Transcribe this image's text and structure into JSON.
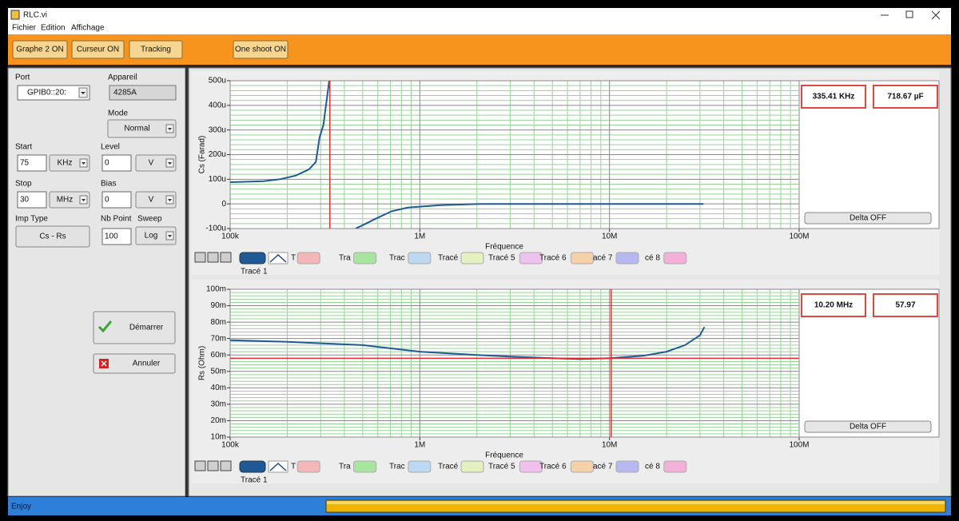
{
  "window": {
    "title": "RLC.vi"
  },
  "menu": [
    "Fichier",
    "Edition",
    "Affichage"
  ],
  "toolbar": [
    "Graphe 2 ON",
    "Curseur ON",
    "Tracking",
    "One shoot ON"
  ],
  "controls": [
    {
      "label": "Port",
      "value": "GPIB0::20:"
    },
    {
      "label": "Appareil",
      "value": "4285A"
    },
    {
      "label": "Mode",
      "value": "Normal"
    },
    {
      "label": "Start",
      "value": "75",
      "unit": "KHz"
    },
    {
      "label": "Level",
      "value": "0",
      "unit": "V"
    },
    {
      "label": "Stop",
      "value": "30",
      "unit": "MHz"
    },
    {
      "label": "Bias",
      "value": "0",
      "unit": "V"
    },
    {
      "label": "Imp Type",
      "value": "Cs - Rs"
    },
    {
      "label": "Nb Point",
      "value": "100"
    },
    {
      "label": "Sweep",
      "value": "Log"
    }
  ],
  "buttons": [
    "Démarrer",
    "Annuler"
  ],
  "graphs": [
    {
      "type": "line",
      "y_label": "Cs (Farad)",
      "x_label": "Fréquence",
      "log_x": true,
      "xlim": [
        100000,
        100000000
      ],
      "xticks": [
        {
          "value": 100000,
          "label": "100k"
        },
        {
          "value": 1000000,
          "label": "1M"
        },
        {
          "value": 10000000,
          "label": "10M"
        },
        {
          "value": 100000000,
          "label": "100M"
        }
      ],
      "ylim": [
        -0.0001,
        0.0005
      ],
      "yticks": [
        {
          "value": 0.0005,
          "label": "500u"
        },
        {
          "value": 0.0004,
          "label": "400u"
        },
        {
          "value": 0.0003,
          "label": "300u"
        },
        {
          "value": 0.0002,
          "label": "200u"
        },
        {
          "value": 0.0001,
          "label": "100u"
        },
        0,
        {
          "value": -0.0001,
          "label": "-100u"
        }
      ],
      "series": [
        {
          "name": "Tracé 1",
          "color": "#1f5a96",
          "x": [
            100000,
            150000,
            183000,
            222000,
            260000,
            283000,
            296000,
            310000,
            320000,
            333000,
            400000,
            459000,
            520000,
            585000,
            710000,
            862000,
            1280000,
            2070000,
            5000000,
            10000000,
            31300000
          ],
          "values": [
            8.8e-05,
            9.2e-05,
            0.0001,
            0.000115,
            0.00014,
            0.00017,
            0.00027,
            0.00032,
            0.0004,
            0.0005,
            null,
            -0.0001,
            -8e-05,
            -6e-05,
            -3e-05,
            -1.5e-05,
            -5e-06,
            0,
            0,
            0,
            0
          ]
        }
      ],
      "cursors": [
        {
          "x": 335410,
          "color": "#e03030"
        }
      ],
      "readouts": [
        "335.41 KHz",
        "718.67 µF"
      ],
      "delta_button": "Delta OFF",
      "legend": [
        {
          "label": "T",
          "color": "#f4b6b6"
        },
        {
          "label": "Tra",
          "color": "#a8e6a0"
        },
        {
          "label": "Trac",
          "color": "#bcd8f2"
        },
        {
          "label": "Tracé",
          "color": "#e4f0c0"
        },
        {
          "label": "Tracé 5",
          "color": "#f0c0ee"
        },
        {
          "label": "Tracé 6",
          "color": "#f6d0a8"
        },
        {
          "label": "acé 7",
          "color": "#b8b8f0"
        },
        {
          "label": "cé 8",
          "color": "#f4b0d8"
        }
      ]
    },
    {
      "type": "line",
      "y_label": "Rs (Ohm)",
      "x_label": "Fréquence",
      "log_x": true,
      "xlim": [
        100000,
        100000000
      ],
      "xticks": [
        {
          "value": 100000,
          "label": "100k"
        },
        {
          "value": 1000000,
          "label": "1M"
        },
        {
          "value": 10000000,
          "label": "10M"
        },
        {
          "value": 100000000,
          "label": "100M"
        }
      ],
      "ylim": [
        0.01,
        0.1
      ],
      "yticks": [
        {
          "value": 0.1,
          "label": "100m"
        },
        {
          "value": 0.09,
          "label": "90m"
        },
        {
          "value": 0.08,
          "label": "80m"
        },
        {
          "value": 0.07,
          "label": "70m"
        },
        {
          "value": 0.06,
          "label": "60m"
        },
        {
          "value": 0.05,
          "label": "50m"
        },
        {
          "value": 0.04,
          "label": "40m"
        },
        {
          "value": 0.03,
          "label": "30m"
        },
        {
          "value": 0.02,
          "label": "20m"
        },
        {
          "value": 0.01,
          "label": "10m"
        }
      ],
      "series": [
        {
          "name": "Tracé 1",
          "color": "#1f5a96",
          "x": [
            100000,
            200000,
            500000,
            1000000,
            2000000,
            3000000,
            5000000,
            7000000,
            10000000,
            15000000,
            20000000,
            25000000,
            30000000,
            31600000
          ],
          "values": [
            0.069,
            0.068,
            0.066,
            0.062,
            0.06,
            0.059,
            0.058,
            0.0575,
            0.058,
            0.0595,
            0.062,
            0.066,
            0.072,
            0.077
          ]
        }
      ],
      "cursors": [
        {
          "x": 10200000,
          "y": 0.05797,
          "color": "#e03030"
        }
      ],
      "readouts": [
        "10.20 MHz",
        "57.97"
      ],
      "delta_button": "Delta OFF",
      "legend": [
        {
          "label": "T",
          "color": "#f4b6b6"
        },
        {
          "label": "Tra",
          "color": "#a8e6a0"
        },
        {
          "label": "Trac",
          "color": "#bcd8f2"
        },
        {
          "label": "Tracé",
          "color": "#e4f0c0"
        },
        {
          "label": "Tracé 5",
          "color": "#f0c0ee"
        },
        {
          "label": "Tracé 6",
          "color": "#f6d0a8"
        },
        {
          "label": "acé 7",
          "color": "#b8b8f0"
        },
        {
          "label": "cé 8",
          "color": "#f4b0d8"
        }
      ]
    }
  ],
  "status": {
    "text": "Enjoy"
  }
}
